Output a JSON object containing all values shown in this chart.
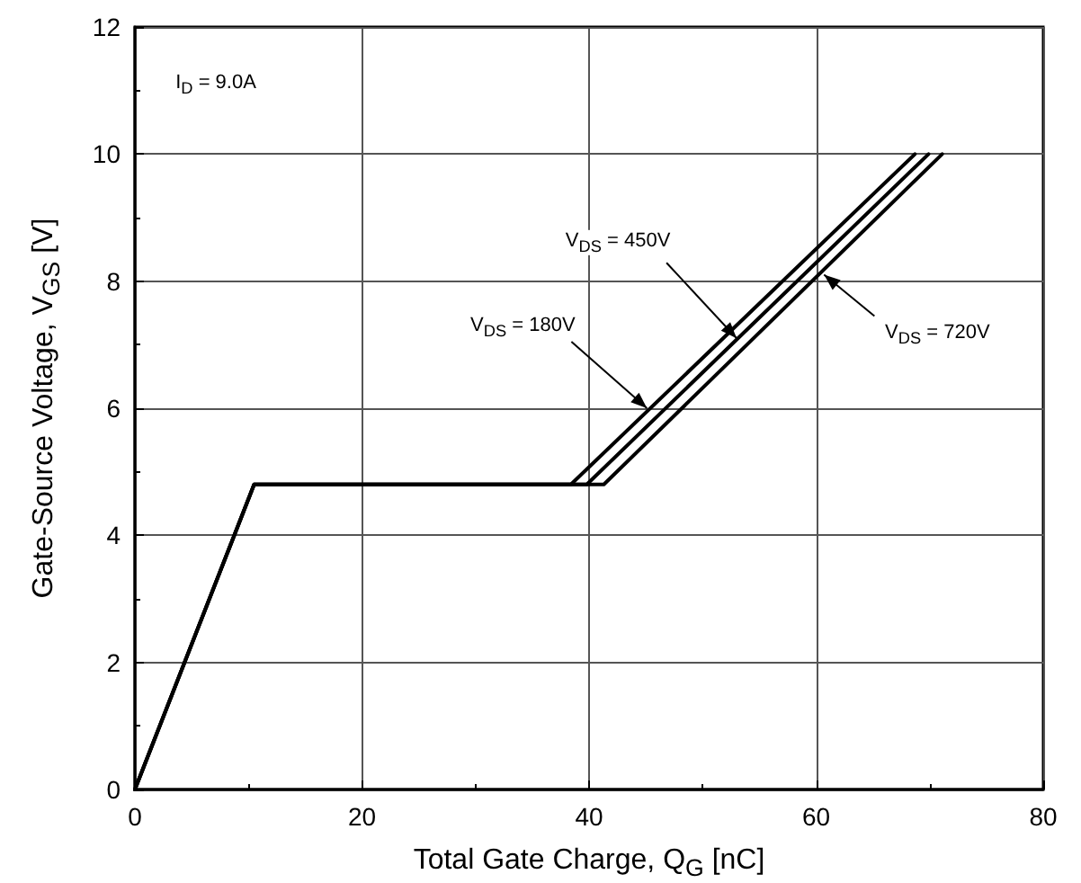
{
  "chart_data": {
    "type": "line",
    "xlabel": "Total Gate Charge, Q$_{G}$ [nC]",
    "ylabel": "Gate-Source Voltage, V$_{GS}$ [V]",
    "xlim": [
      0,
      80
    ],
    "xticks": [
      0,
      20,
      40,
      60,
      80
    ],
    "ylim": [
      0,
      12
    ],
    "yticks": [
      0,
      2,
      4,
      6,
      8,
      10,
      12
    ],
    "grid": true,
    "marker": "none",
    "line_style": "solid",
    "series": [
      {
        "color": "#000000",
        "x": [
          0,
          10.5,
          38.4,
          68.7
        ],
        "values": [
          0,
          4.8,
          4.8,
          10
        ]
      },
      {
        "color": "#000000",
        "x": [
          0,
          10.5,
          39.8,
          69.9
        ],
        "values": [
          0,
          4.8,
          4.8,
          10
        ]
      },
      {
        "color": "#000000",
        "x": [
          0,
          10.5,
          41.3,
          71.1
        ],
        "values": [
          0,
          4.8,
          4.8,
          10
        ]
      }
    ],
    "annotations": [
      "I$_{D}$ = 9.0A",
      {
        "text": "V$_{DS}$ = 180V",
        "x": 45.1,
        "y": 6.0
      },
      {
        "text": "V$_{DS}$ = 450V",
        "x": 53.0,
        "y": 7.1
      },
      {
        "text": "V$_{DS}$ = 720V",
        "x": 60.7,
        "y": 8.1
      }
    ]
  }
}
